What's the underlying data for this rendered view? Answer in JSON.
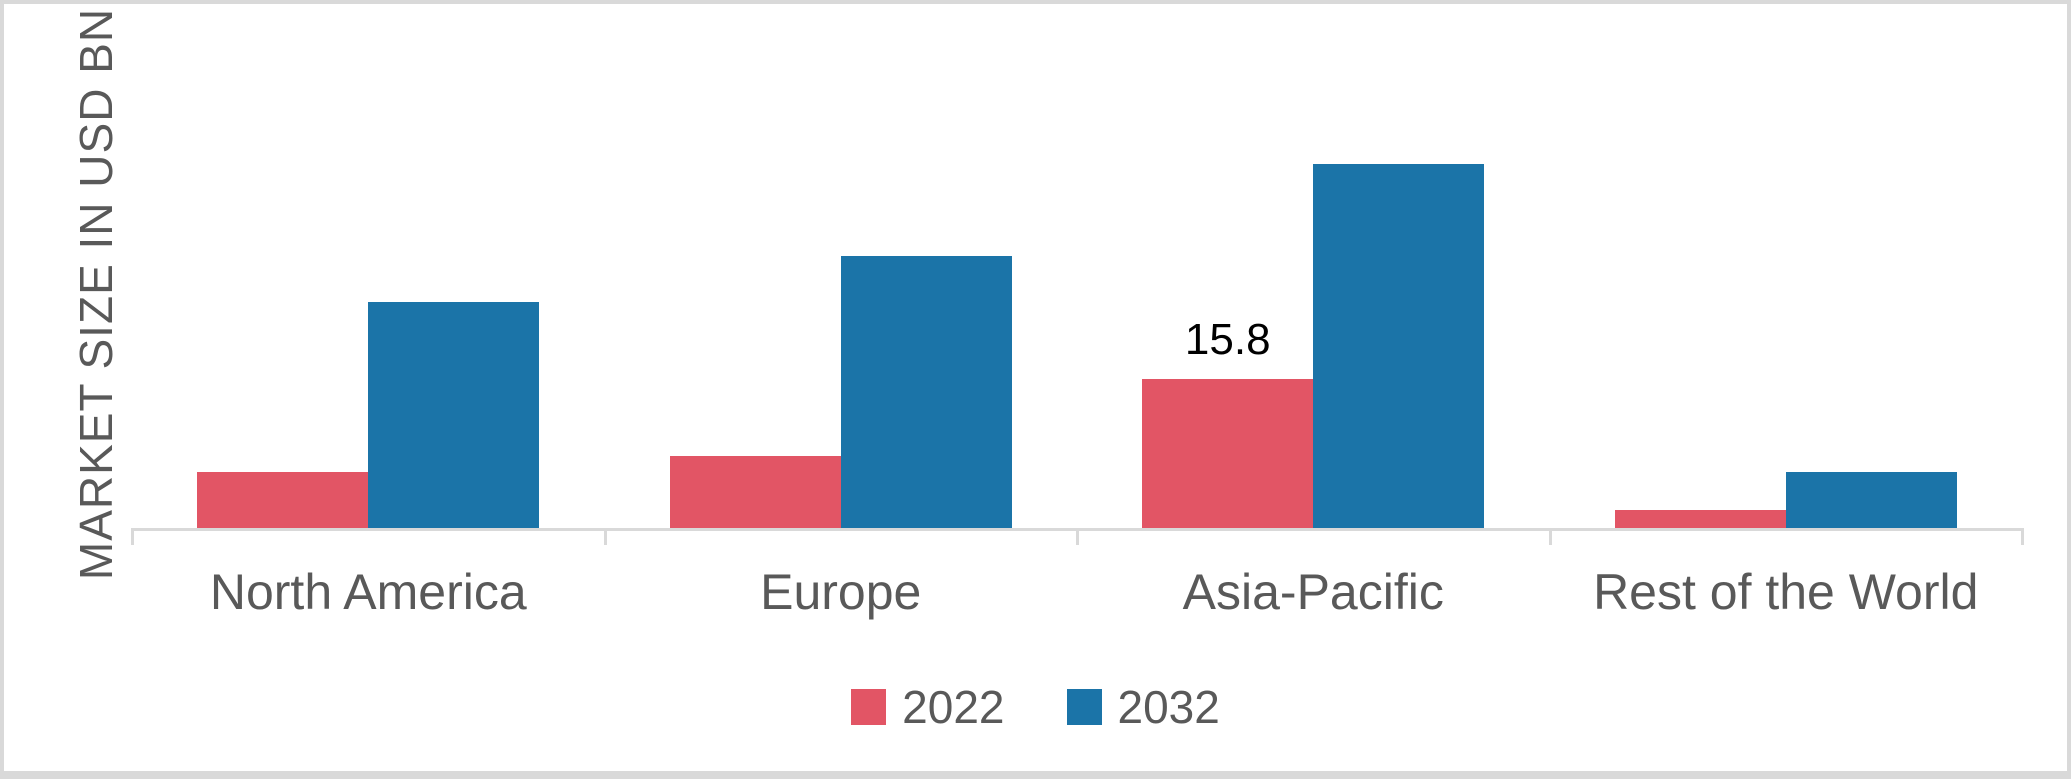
{
  "chart_data": {
    "type": "bar",
    "title": "",
    "xlabel": "",
    "ylabel": "MARKET SIZE IN USD BN",
    "categories": [
      "North America",
      "Europe",
      "Asia-Pacific",
      "Rest of the World"
    ],
    "series": [
      {
        "name": "2022",
        "color": "#e25565",
        "values": [
          5.9,
          7.6,
          15.8,
          1.9
        ]
      },
      {
        "name": "2032",
        "color": "#1b74a8",
        "values": [
          24.0,
          28.8,
          38.6,
          5.9
        ]
      }
    ],
    "data_labels": [
      {
        "series_index": 0,
        "category_index": 2,
        "text": "15.8"
      }
    ],
    "ylim": [
      0,
      42
    ],
    "grid": false,
    "y_ticks_visible": false,
    "legend_position": "bottom",
    "axis_color": "#d9d9d9",
    "text_color": "#595959",
    "data_label_color": "#000000",
    "frame_border_color": "#d9d9d9"
  }
}
